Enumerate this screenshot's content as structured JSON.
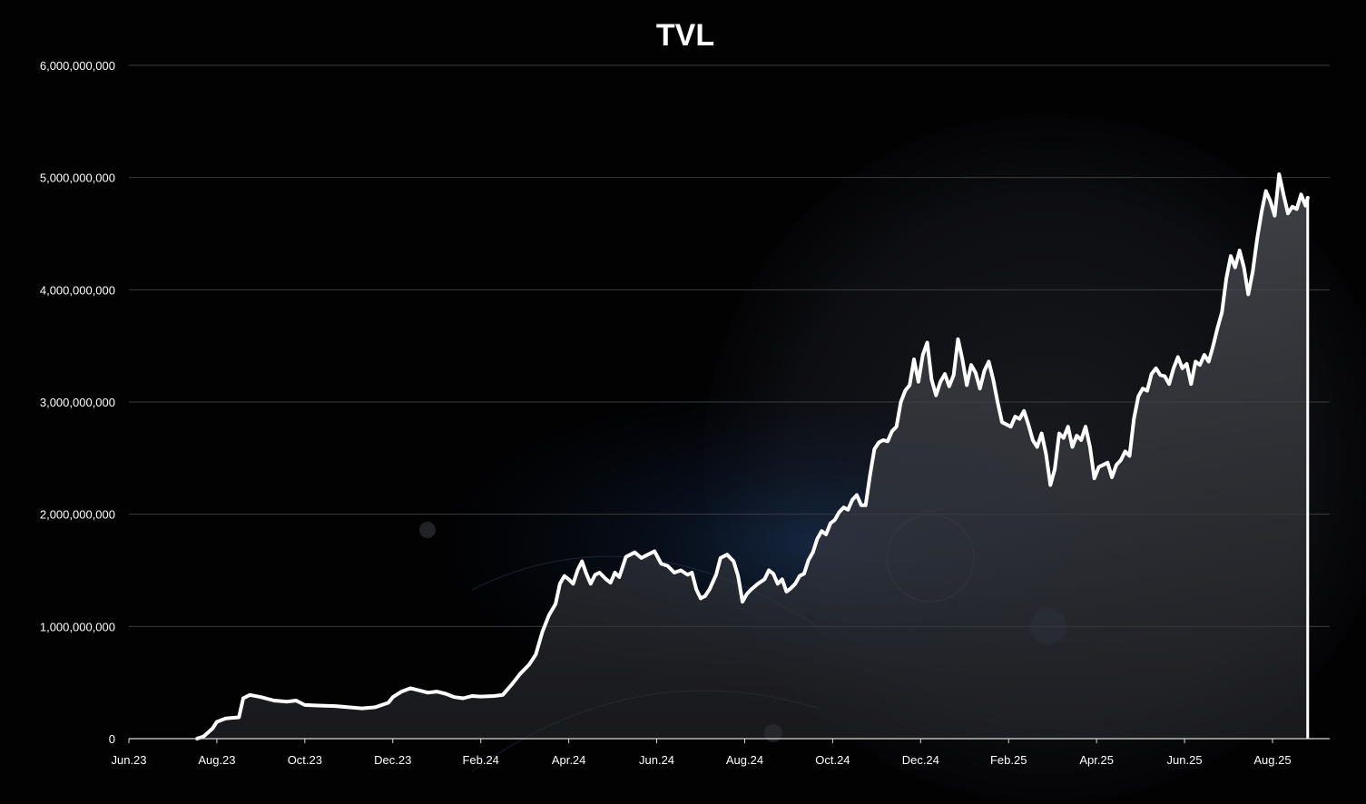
{
  "chart_data": {
    "type": "area",
    "title": "TVL",
    "xlabel": "",
    "ylabel": "",
    "ylim": [
      0,
      6000000000
    ],
    "y_ticks": [
      0,
      1000000000,
      2000000000,
      3000000000,
      4000000000,
      5000000000,
      6000000000
    ],
    "y_tick_labels": [
      "0",
      "1,000,000,000",
      "2,000,000,000",
      "3,000,000,000",
      "4,000,000,000",
      "5,000,000,000",
      "6,000,000,000"
    ],
    "x_tick_labels": [
      "Jun.23",
      "Aug.23",
      "Oct.23",
      "Dec.23",
      "Feb.24",
      "Apr.24",
      "Jun.24",
      "Aug.24",
      "Oct.24",
      "Dec.24",
      "Feb.25",
      "Apr.25",
      "Jun.25",
      "Aug.25"
    ],
    "x_range_months": [
      0,
      27.3
    ],
    "grid": true,
    "legend": "none",
    "colors": {
      "line": "#ffffff",
      "fill": "#3a3b40",
      "grid": "#3c3c3c",
      "axis": "#d9d9d9",
      "background": "#020203"
    },
    "series": [
      {
        "name": "TVL",
        "points": [
          [
            1.55,
            0
          ],
          [
            1.7,
            20000000
          ],
          [
            1.9,
            90000000
          ],
          [
            2.0,
            150000000
          ],
          [
            2.2,
            180000000
          ],
          [
            2.5,
            190000000
          ],
          [
            2.6,
            360000000
          ],
          [
            2.75,
            390000000
          ],
          [
            3.0,
            370000000
          ],
          [
            3.3,
            340000000
          ],
          [
            3.6,
            330000000
          ],
          [
            3.8,
            340000000
          ],
          [
            4.0,
            300000000
          ],
          [
            4.3,
            295000000
          ],
          [
            4.7,
            290000000
          ],
          [
            5.0,
            280000000
          ],
          [
            5.3,
            270000000
          ],
          [
            5.6,
            280000000
          ],
          [
            5.9,
            320000000
          ],
          [
            6.0,
            370000000
          ],
          [
            6.2,
            420000000
          ],
          [
            6.4,
            450000000
          ],
          [
            6.6,
            430000000
          ],
          [
            6.8,
            410000000
          ],
          [
            7.0,
            420000000
          ],
          [
            7.2,
            400000000
          ],
          [
            7.4,
            370000000
          ],
          [
            7.6,
            360000000
          ],
          [
            7.8,
            380000000
          ],
          [
            8.0,
            375000000
          ],
          [
            8.3,
            380000000
          ],
          [
            8.5,
            390000000
          ],
          [
            8.7,
            480000000
          ],
          [
            8.9,
            580000000
          ],
          [
            9.1,
            660000000
          ],
          [
            9.25,
            750000000
          ],
          [
            9.4,
            950000000
          ],
          [
            9.55,
            1100000000
          ],
          [
            9.7,
            1200000000
          ],
          [
            9.8,
            1380000000
          ],
          [
            9.9,
            1450000000
          ],
          [
            10.0,
            1420000000
          ],
          [
            10.1,
            1380000000
          ],
          [
            10.2,
            1500000000
          ],
          [
            10.3,
            1580000000
          ],
          [
            10.4,
            1470000000
          ],
          [
            10.5,
            1380000000
          ],
          [
            10.6,
            1460000000
          ],
          [
            10.7,
            1480000000
          ],
          [
            10.85,
            1420000000
          ],
          [
            10.95,
            1390000000
          ],
          [
            11.05,
            1480000000
          ],
          [
            11.15,
            1440000000
          ],
          [
            11.3,
            1620000000
          ],
          [
            11.5,
            1660000000
          ],
          [
            11.65,
            1610000000
          ],
          [
            11.8,
            1640000000
          ],
          [
            11.95,
            1670000000
          ],
          [
            12.1,
            1560000000
          ],
          [
            12.25,
            1540000000
          ],
          [
            12.4,
            1480000000
          ],
          [
            12.55,
            1500000000
          ],
          [
            12.7,
            1460000000
          ],
          [
            12.8,
            1480000000
          ],
          [
            12.9,
            1330000000
          ],
          [
            13.0,
            1250000000
          ],
          [
            13.1,
            1270000000
          ],
          [
            13.2,
            1330000000
          ],
          [
            13.35,
            1460000000
          ],
          [
            13.45,
            1610000000
          ],
          [
            13.6,
            1640000000
          ],
          [
            13.75,
            1580000000
          ],
          [
            13.85,
            1450000000
          ],
          [
            13.95,
            1220000000
          ],
          [
            14.05,
            1290000000
          ],
          [
            14.15,
            1330000000
          ],
          [
            14.3,
            1380000000
          ],
          [
            14.45,
            1420000000
          ],
          [
            14.55,
            1500000000
          ],
          [
            14.65,
            1470000000
          ],
          [
            14.75,
            1380000000
          ],
          [
            14.85,
            1420000000
          ],
          [
            14.95,
            1310000000
          ],
          [
            15.05,
            1340000000
          ],
          [
            15.15,
            1380000000
          ],
          [
            15.25,
            1450000000
          ],
          [
            15.35,
            1470000000
          ],
          [
            15.45,
            1590000000
          ],
          [
            15.55,
            1660000000
          ],
          [
            15.65,
            1780000000
          ],
          [
            15.75,
            1850000000
          ],
          [
            15.85,
            1820000000
          ],
          [
            15.95,
            1920000000
          ],
          [
            16.05,
            1950000000
          ],
          [
            16.15,
            2020000000
          ],
          [
            16.25,
            2060000000
          ],
          [
            16.35,
            2040000000
          ],
          [
            16.45,
            2130000000
          ],
          [
            16.55,
            2170000000
          ],
          [
            16.65,
            2080000000
          ],
          [
            16.75,
            2080000000
          ],
          [
            16.85,
            2350000000
          ],
          [
            16.95,
            2580000000
          ],
          [
            17.05,
            2640000000
          ],
          [
            17.15,
            2660000000
          ],
          [
            17.25,
            2650000000
          ],
          [
            17.35,
            2740000000
          ],
          [
            17.45,
            2780000000
          ],
          [
            17.55,
            3000000000
          ],
          [
            17.65,
            3100000000
          ],
          [
            17.75,
            3150000000
          ],
          [
            17.85,
            3380000000
          ],
          [
            17.95,
            3180000000
          ],
          [
            18.05,
            3420000000
          ],
          [
            18.15,
            3530000000
          ],
          [
            18.25,
            3200000000
          ],
          [
            18.35,
            3060000000
          ],
          [
            18.45,
            3180000000
          ],
          [
            18.55,
            3250000000
          ],
          [
            18.65,
            3140000000
          ],
          [
            18.75,
            3240000000
          ],
          [
            18.85,
            3560000000
          ],
          [
            18.95,
            3380000000
          ],
          [
            19.05,
            3150000000
          ],
          [
            19.15,
            3330000000
          ],
          [
            19.25,
            3260000000
          ],
          [
            19.35,
            3120000000
          ],
          [
            19.45,
            3280000000
          ],
          [
            19.55,
            3360000000
          ],
          [
            19.65,
            3200000000
          ],
          [
            19.75,
            3000000000
          ],
          [
            19.85,
            2820000000
          ],
          [
            19.95,
            2800000000
          ],
          [
            20.05,
            2780000000
          ],
          [
            20.15,
            2870000000
          ],
          [
            20.25,
            2850000000
          ],
          [
            20.35,
            2920000000
          ],
          [
            20.45,
            2800000000
          ],
          [
            20.55,
            2660000000
          ],
          [
            20.65,
            2600000000
          ],
          [
            20.75,
            2720000000
          ],
          [
            20.85,
            2540000000
          ],
          [
            20.95,
            2260000000
          ],
          [
            21.05,
            2400000000
          ],
          [
            21.15,
            2720000000
          ],
          [
            21.25,
            2680000000
          ],
          [
            21.35,
            2780000000
          ],
          [
            21.45,
            2600000000
          ],
          [
            21.55,
            2700000000
          ],
          [
            21.65,
            2660000000
          ],
          [
            21.75,
            2780000000
          ],
          [
            21.85,
            2600000000
          ],
          [
            21.95,
            2320000000
          ],
          [
            22.05,
            2420000000
          ],
          [
            22.15,
            2440000000
          ],
          [
            22.25,
            2460000000
          ],
          [
            22.35,
            2330000000
          ],
          [
            22.45,
            2440000000
          ],
          [
            22.55,
            2480000000
          ],
          [
            22.65,
            2560000000
          ],
          [
            22.75,
            2520000000
          ],
          [
            22.85,
            2850000000
          ],
          [
            22.95,
            3050000000
          ],
          [
            23.05,
            3120000000
          ],
          [
            23.15,
            3100000000
          ],
          [
            23.25,
            3250000000
          ],
          [
            23.35,
            3300000000
          ],
          [
            23.45,
            3240000000
          ],
          [
            23.55,
            3230000000
          ],
          [
            23.65,
            3160000000
          ],
          [
            23.75,
            3300000000
          ],
          [
            23.85,
            3400000000
          ],
          [
            23.95,
            3300000000
          ],
          [
            24.05,
            3340000000
          ],
          [
            24.15,
            3160000000
          ],
          [
            24.25,
            3360000000
          ],
          [
            24.35,
            3330000000
          ],
          [
            24.45,
            3420000000
          ],
          [
            24.55,
            3360000000
          ],
          [
            24.65,
            3500000000
          ],
          [
            24.75,
            3660000000
          ],
          [
            24.85,
            3800000000
          ],
          [
            24.95,
            4100000000
          ],
          [
            25.05,
            4300000000
          ],
          [
            25.15,
            4200000000
          ],
          [
            25.25,
            4350000000
          ],
          [
            25.35,
            4200000000
          ],
          [
            25.45,
            3960000000
          ],
          [
            25.55,
            4160000000
          ],
          [
            25.65,
            4450000000
          ],
          [
            25.75,
            4690000000
          ],
          [
            25.85,
            4880000000
          ],
          [
            25.95,
            4790000000
          ],
          [
            26.05,
            4660000000
          ],
          [
            26.15,
            5030000000
          ],
          [
            26.25,
            4850000000
          ],
          [
            26.35,
            4680000000
          ],
          [
            26.45,
            4740000000
          ],
          [
            26.55,
            4720000000
          ],
          [
            26.65,
            4850000000
          ],
          [
            26.75,
            4750000000
          ],
          [
            26.8,
            4820000000
          ]
        ]
      }
    ]
  }
}
